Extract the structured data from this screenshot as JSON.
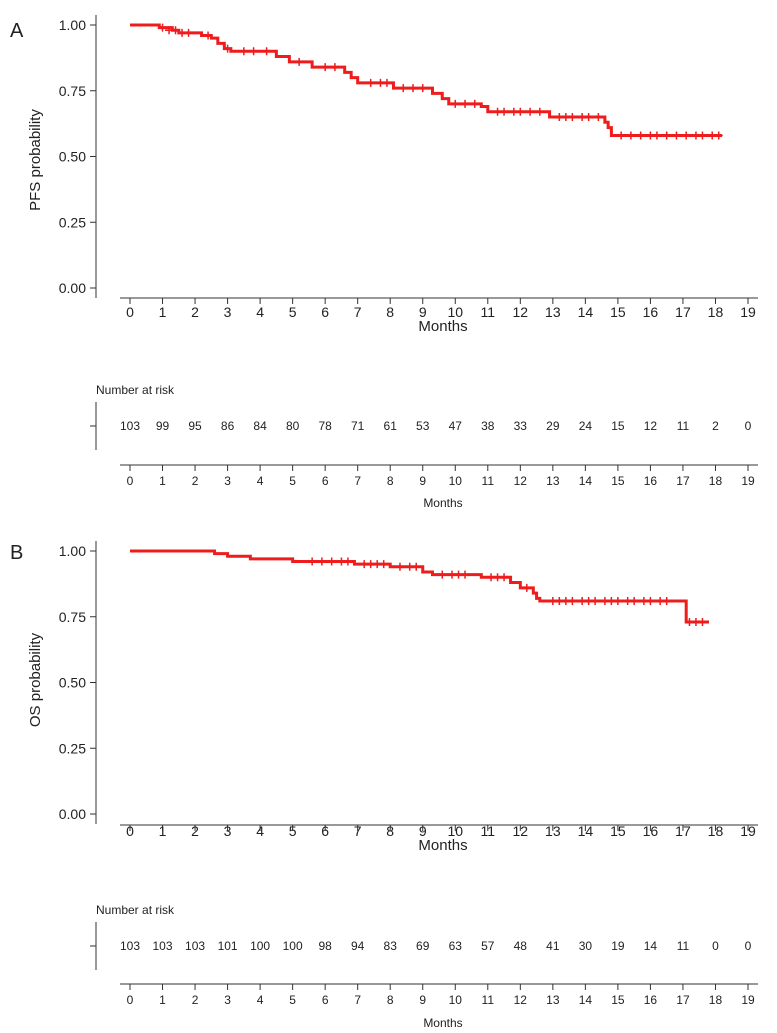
{
  "chart_data": [
    {
      "type": "line",
      "panel_label": "A",
      "xlabel": "Months",
      "ylabel": "PFS probability",
      "xlim": [
        0,
        19
      ],
      "ylim": [
        0,
        1
      ],
      "x_ticks": [
        0,
        1,
        2,
        3,
        4,
        5,
        6,
        7,
        8,
        9,
        10,
        11,
        12,
        13,
        14,
        15,
        16,
        17,
        18,
        19
      ],
      "y_ticks": [
        "0.00",
        "0.25",
        "0.50",
        "0.75",
        "1.00"
      ],
      "grid": false,
      "line_color": "#ee1c1c",
      "series": [
        {
          "steps": [
            [
              0,
              1.0
            ],
            [
              0.9,
              0.99
            ],
            [
              1.3,
              0.98
            ],
            [
              1.5,
              0.97
            ],
            [
              2.2,
              0.96
            ],
            [
              2.5,
              0.95
            ],
            [
              2.7,
              0.93
            ],
            [
              2.9,
              0.91
            ],
            [
              3.1,
              0.9
            ],
            [
              4.5,
              0.88
            ],
            [
              4.9,
              0.86
            ],
            [
              5.6,
              0.84
            ],
            [
              6.6,
              0.82
            ],
            [
              6.8,
              0.8
            ],
            [
              7.0,
              0.78
            ],
            [
              8.1,
              0.76
            ],
            [
              9.3,
              0.74
            ],
            [
              9.6,
              0.72
            ],
            [
              9.8,
              0.7
            ],
            [
              10.8,
              0.69
            ],
            [
              11.0,
              0.67
            ],
            [
              12.9,
              0.65
            ],
            [
              14.6,
              0.63
            ],
            [
              14.7,
              0.61
            ],
            [
              14.8,
              0.58
            ],
            [
              18.2,
              0.58
            ]
          ],
          "censors": [
            [
              1.0,
              0.99
            ],
            [
              1.2,
              0.98
            ],
            [
              1.4,
              0.98
            ],
            [
              1.6,
              0.97
            ],
            [
              1.8,
              0.97
            ],
            [
              2.4,
              0.96
            ],
            [
              3.0,
              0.91
            ],
            [
              3.5,
              0.9
            ],
            [
              3.8,
              0.9
            ],
            [
              4.2,
              0.9
            ],
            [
              5.2,
              0.86
            ],
            [
              6.0,
              0.84
            ],
            [
              6.3,
              0.84
            ],
            [
              7.4,
              0.78
            ],
            [
              7.7,
              0.78
            ],
            [
              7.9,
              0.78
            ],
            [
              8.4,
              0.76
            ],
            [
              8.7,
              0.76
            ],
            [
              9.0,
              0.76
            ],
            [
              10.0,
              0.7
            ],
            [
              10.3,
              0.7
            ],
            [
              10.6,
              0.7
            ],
            [
              11.3,
              0.67
            ],
            [
              11.5,
              0.67
            ],
            [
              11.8,
              0.67
            ],
            [
              12.0,
              0.67
            ],
            [
              12.3,
              0.67
            ],
            [
              12.6,
              0.67
            ],
            [
              13.2,
              0.65
            ],
            [
              13.4,
              0.65
            ],
            [
              13.6,
              0.65
            ],
            [
              13.9,
              0.65
            ],
            [
              14.1,
              0.65
            ],
            [
              14.4,
              0.65
            ],
            [
              15.1,
              0.58
            ],
            [
              15.4,
              0.58
            ],
            [
              15.7,
              0.58
            ],
            [
              16.0,
              0.58
            ],
            [
              16.2,
              0.58
            ],
            [
              16.5,
              0.58
            ],
            [
              16.8,
              0.58
            ],
            [
              17.1,
              0.58
            ],
            [
              17.4,
              0.58
            ],
            [
              17.6,
              0.58
            ],
            [
              17.9,
              0.58
            ],
            [
              18.1,
              0.58
            ]
          ]
        }
      ],
      "risk_table": {
        "title": "Number at risk",
        "xlabel": "Months",
        "values": [
          "103",
          "99",
          "95",
          "86",
          "84",
          "80",
          "78",
          "71",
          "61",
          "53",
          "47",
          "38",
          "33",
          "29",
          "24",
          "15",
          "12",
          "11",
          "2",
          "0"
        ]
      }
    },
    {
      "type": "line",
      "panel_label": "B",
      "xlabel": "Months",
      "ylabel": "OS probability",
      "xlim": [
        0,
        19
      ],
      "ylim": [
        0,
        1
      ],
      "x_ticks": [
        0,
        1,
        2,
        3,
        4,
        5,
        6,
        7,
        8,
        9,
        10,
        11,
        12,
        13,
        14,
        15,
        16,
        17,
        18,
        19
      ],
      "y_ticks": [
        "0.00",
        "0.25",
        "0.50",
        "0.75",
        "1.00"
      ],
      "grid": false,
      "line_color": "#ee1c1c",
      "series": [
        {
          "steps": [
            [
              0,
              1.0
            ],
            [
              2.6,
              0.99
            ],
            [
              3.0,
              0.98
            ],
            [
              3.7,
              0.97
            ],
            [
              5.0,
              0.96
            ],
            [
              6.9,
              0.95
            ],
            [
              8.0,
              0.94
            ],
            [
              9.0,
              0.92
            ],
            [
              9.3,
              0.91
            ],
            [
              10.8,
              0.9
            ],
            [
              11.7,
              0.88
            ],
            [
              12.0,
              0.86
            ],
            [
              12.4,
              0.84
            ],
            [
              12.5,
              0.82
            ],
            [
              12.6,
              0.81
            ],
            [
              17.1,
              0.73
            ],
            [
              17.8,
              0.73
            ]
          ],
          "censors": [
            [
              5.6,
              0.96
            ],
            [
              5.9,
              0.96
            ],
            [
              6.2,
              0.96
            ],
            [
              6.5,
              0.96
            ],
            [
              6.7,
              0.96
            ],
            [
              7.2,
              0.95
            ],
            [
              7.4,
              0.95
            ],
            [
              7.6,
              0.95
            ],
            [
              7.8,
              0.95
            ],
            [
              8.3,
              0.94
            ],
            [
              8.6,
              0.94
            ],
            [
              8.8,
              0.94
            ],
            [
              9.6,
              0.91
            ],
            [
              9.9,
              0.91
            ],
            [
              10.1,
              0.91
            ],
            [
              10.3,
              0.91
            ],
            [
              11.1,
              0.9
            ],
            [
              11.3,
              0.9
            ],
            [
              11.5,
              0.9
            ],
            [
              12.2,
              0.86
            ],
            [
              13.0,
              0.81
            ],
            [
              13.2,
              0.81
            ],
            [
              13.4,
              0.81
            ],
            [
              13.6,
              0.81
            ],
            [
              13.9,
              0.81
            ],
            [
              14.1,
              0.81
            ],
            [
              14.3,
              0.81
            ],
            [
              14.6,
              0.81
            ],
            [
              14.8,
              0.81
            ],
            [
              15.0,
              0.81
            ],
            [
              15.3,
              0.81
            ],
            [
              15.5,
              0.81
            ],
            [
              15.8,
              0.81
            ],
            [
              16.0,
              0.81
            ],
            [
              16.3,
              0.81
            ],
            [
              16.5,
              0.81
            ],
            [
              17.2,
              0.73
            ],
            [
              17.4,
              0.73
            ],
            [
              17.6,
              0.73
            ]
          ]
        }
      ],
      "risk_table": {
        "title": "Number at risk",
        "xlabel": "Months",
        "values": [
          "103",
          "103",
          "103",
          "101",
          "100",
          "100",
          "98",
          "94",
          "83",
          "69",
          "63",
          "57",
          "48",
          "41",
          "30",
          "19",
          "14",
          "11",
          "0",
          "0"
        ]
      }
    }
  ]
}
